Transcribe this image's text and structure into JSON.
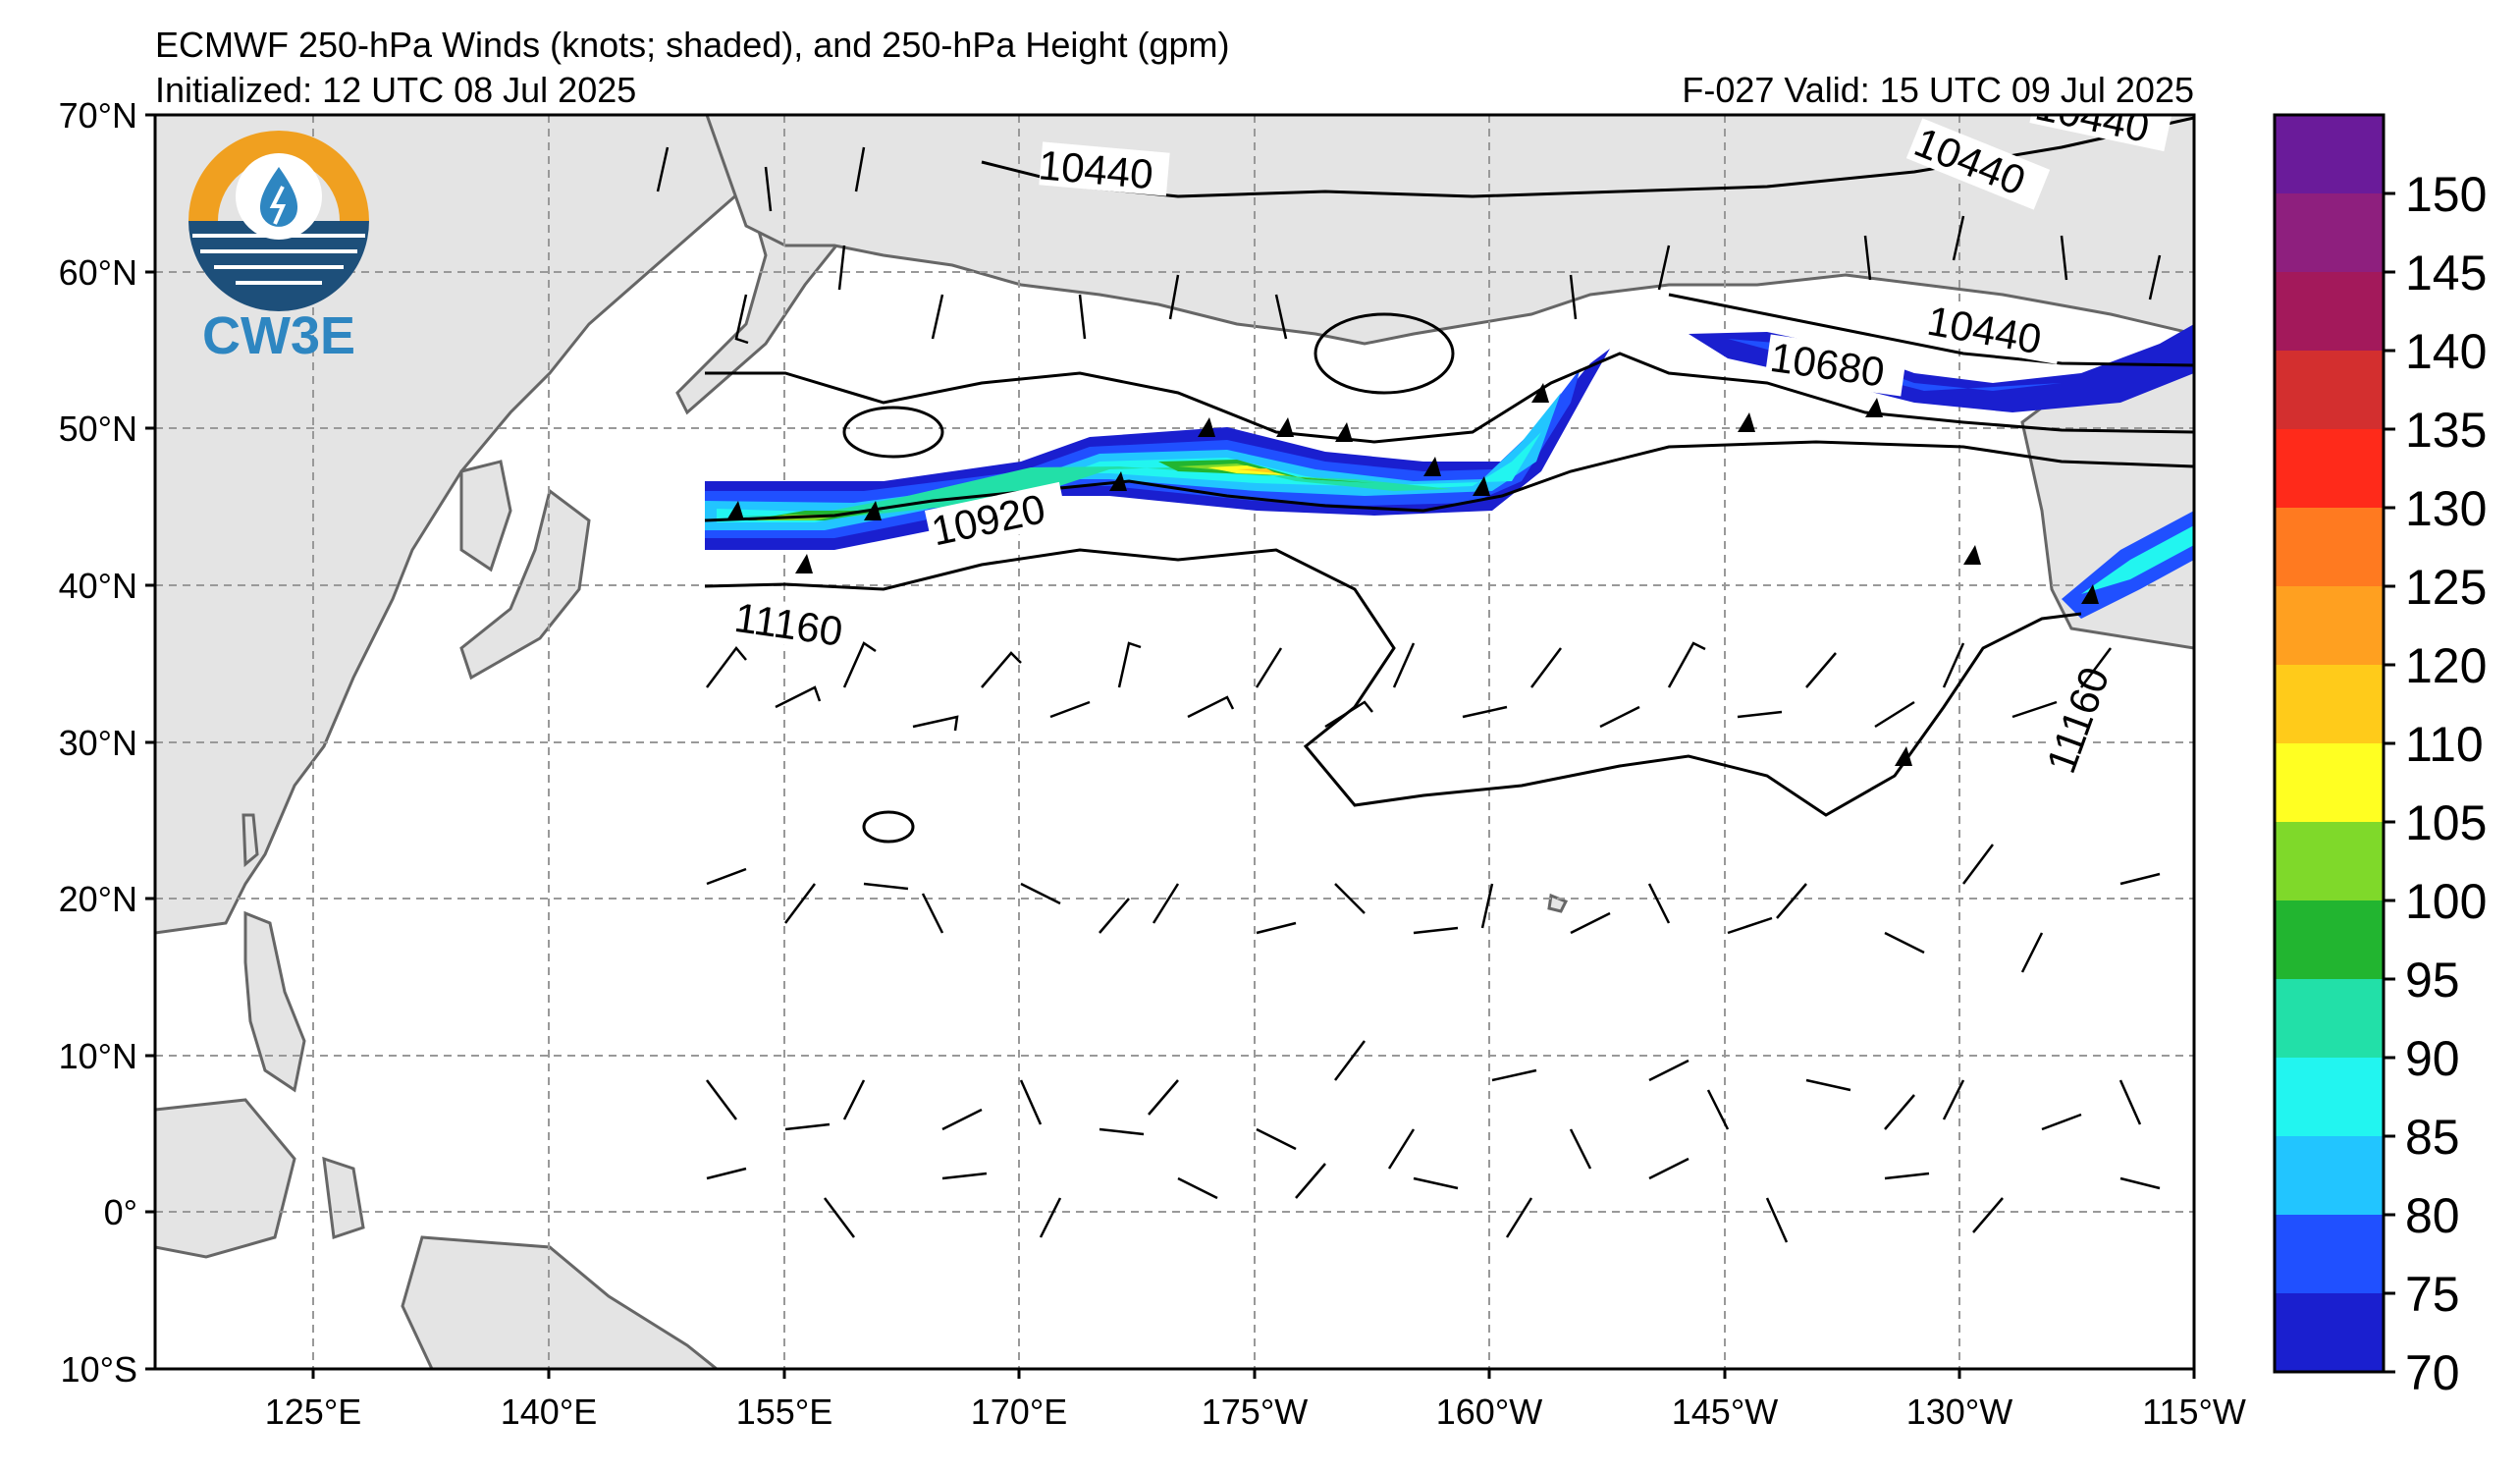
{
  "header": {
    "title": "ECMWF 250-hPa Winds (knots; shaded), and 250-hPa Height (gpm)",
    "initialized": "Initialized: 12 UTC 08 Jul 2025",
    "valid": "F-027  Valid: 15 UTC 09 Jul 2025"
  },
  "logo": {
    "text": "CW3E",
    "colors": {
      "orange": "#f0a020",
      "blue": "#2e86c1",
      "navy": "#1d4f7a"
    }
  },
  "axes": {
    "lat_labels": [
      "70°N",
      "60°N",
      "50°N",
      "40°N",
      "30°N",
      "20°N",
      "10°N",
      "0°",
      "10°S"
    ],
    "lon_labels": [
      "125°E",
      "140°E",
      "155°E",
      "170°E",
      "175°W",
      "160°W",
      "145°W",
      "130°W",
      "115°W"
    ]
  },
  "contour_labels": [
    "10440",
    "10440",
    "10440",
    "10440",
    "10680",
    "10920",
    "11160",
    "11160"
  ],
  "colorbar": {
    "ticks": [
      "150",
      "145",
      "140",
      "135",
      "130",
      "125",
      "120",
      "110",
      "105",
      "100",
      "95",
      "90",
      "85",
      "80",
      "75",
      "70"
    ],
    "colors": [
      "#6a1b9a",
      "#8e1f7e",
      "#a3195b",
      "#d32f2f",
      "#ff2a1a",
      "#ff7a20",
      "#ffa020",
      "#ffcb1a",
      "#ffff22",
      "#7fd92a",
      "#22b530",
      "#22e0a8",
      "#22f5f0",
      "#22c5ff",
      "#2050ff",
      "#1a1fcf"
    ]
  },
  "chart_data": {
    "type": "heatmap",
    "field": "250-hPa wind speed (knots) with 250-hPa height contours (gpm) and wind barbs",
    "domain": {
      "lat_range": [
        -10,
        70
      ],
      "lon_range_deg_east": [
        110,
        245
      ]
    },
    "shading_levels_knots": [
      70,
      75,
      80,
      85,
      90,
      95,
      100,
      105,
      110,
      120,
      125,
      130,
      135,
      140,
      145,
      150
    ],
    "height_contours_gpm": [
      10440,
      10680,
      10920,
      11160
    ],
    "jet_max_knots_approx": 115,
    "jet_max_location": {
      "lat": 47,
      "lon": "175°W"
    }
  }
}
